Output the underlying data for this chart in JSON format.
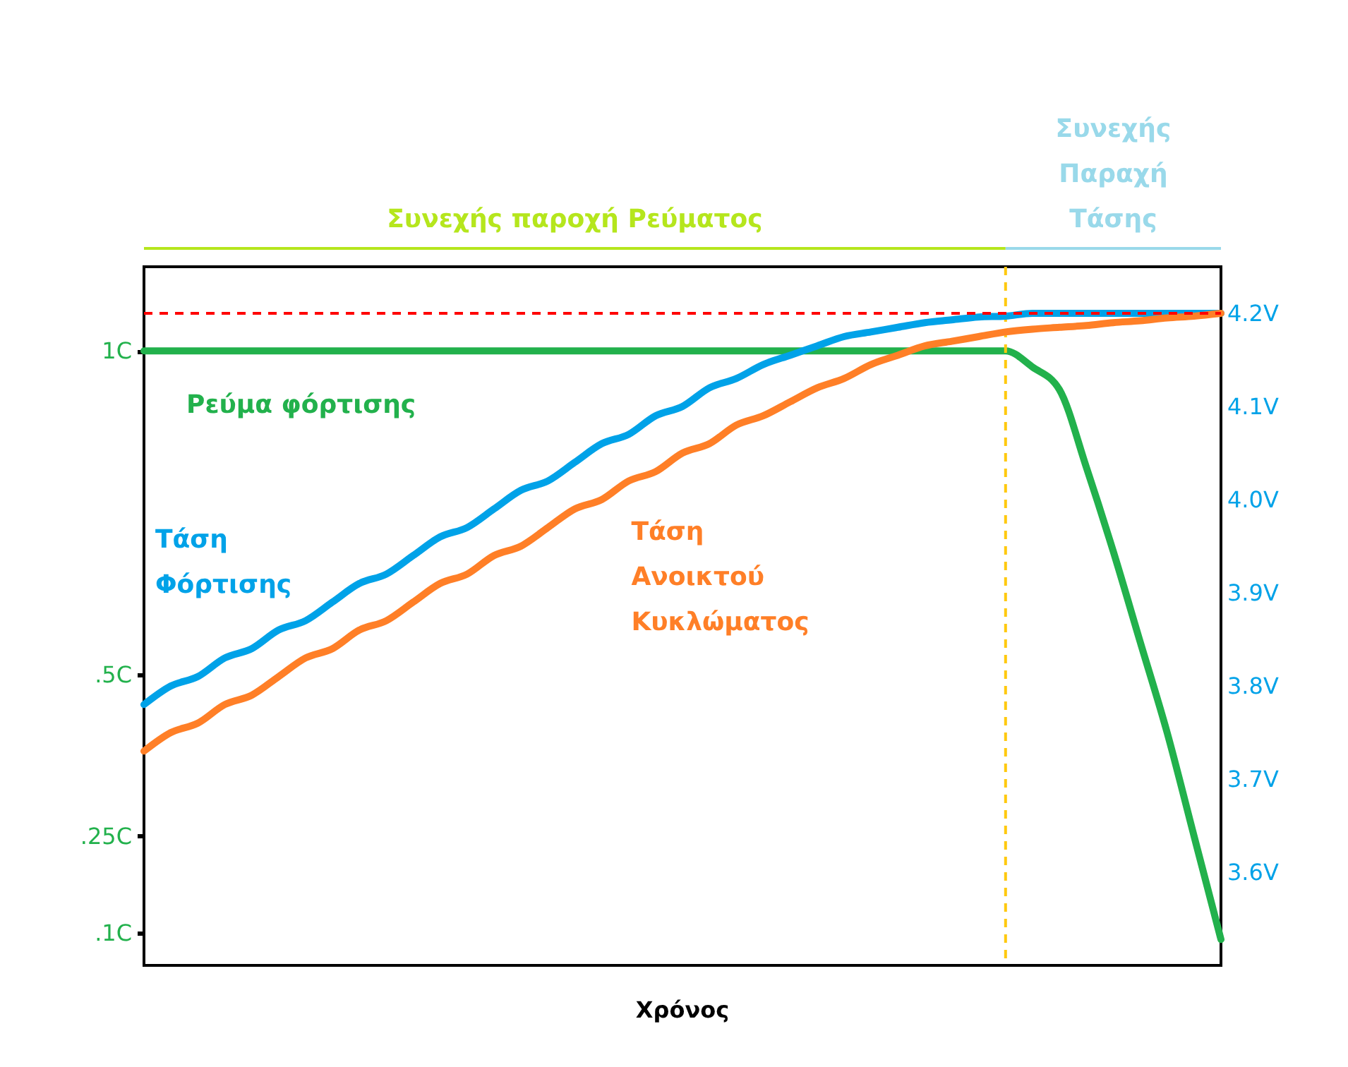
{
  "chart_data": {
    "type": "line",
    "xlabel": "Χρόνος",
    "tick_labels": "y",
    "grid": false,
    "categories": [
      null,
      null,
      null,
      null,
      null,
      null,
      null,
      null,
      null,
      null,
      null,
      null,
      null,
      null,
      null,
      null,
      null,
      null,
      null,
      null,
      null,
      null,
      null,
      null,
      null,
      null,
      null,
      null,
      null,
      null,
      null,
      null,
      null,
      null,
      null,
      null,
      null,
      null,
      null,
      null,
      null
    ],
    "ylim": [
      0.05,
      1.13
    ],
    "yticks": [
      {
        "value": 1,
        "label": "1C"
      },
      {
        "value": 0.5,
        "label": ".5C"
      },
      {
        "value": 0.25,
        "label": ".25C"
      },
      {
        "value": 0.1,
        "label": ".1C"
      }
    ],
    "y2lim": [
      3.5,
      4.25
    ],
    "y2ticks": [
      {
        "value": 4.2,
        "label": "4.2V"
      },
      {
        "value": 4.1,
        "label": "4.1V"
      },
      {
        "value": 4.0,
        "label": "4.0V"
      },
      {
        "value": 3.9,
        "label": "3.9V"
      },
      {
        "value": 3.8,
        "label": "3.8V"
      },
      {
        "value": 3.7,
        "label": "3.7V"
      },
      {
        "value": 3.6,
        "label": "3.6V"
      }
    ],
    "series": [
      {
        "name": "Ρεύμα φόρτισης",
        "color": "#22b14c",
        "values": [
          1,
          1,
          1,
          1,
          1,
          1,
          1,
          1,
          1,
          1,
          1,
          1,
          1,
          1,
          1,
          1,
          1,
          1,
          1,
          1,
          1,
          1,
          1,
          1,
          1,
          1,
          1,
          1,
          1,
          1,
          1,
          1,
          1,
          0.975,
          0.94,
          0.82,
          0.69,
          0.55,
          0.41,
          0.25,
          0.09
        ]
      },
      {
        "name": "Τάση\nΦόρτισης",
        "color": "#00a2e8",
        "axis": "y2",
        "values": [
          3.78,
          3.8,
          3.81,
          3.83,
          3.84,
          3.86,
          3.87,
          3.89,
          3.91,
          3.92,
          3.94,
          3.96,
          3.97,
          3.99,
          4.01,
          4.02,
          4.04,
          4.06,
          4.07,
          4.09,
          4.1,
          4.12,
          4.13,
          4.145,
          4.155,
          4.165,
          4.175,
          4.18,
          4.185,
          4.19,
          4.193,
          4.196,
          4.197,
          4.2,
          4.2,
          4.2,
          4.2,
          4.2,
          4.2,
          4.2,
          4.2
        ]
      },
      {
        "name": "Τάση\nΑνοικτού\nΚυκλώματος",
        "color": "#ff7f27",
        "axis": "y2",
        "values": [
          3.73,
          3.75,
          3.76,
          3.78,
          3.79,
          3.81,
          3.83,
          3.84,
          3.86,
          3.87,
          3.89,
          3.91,
          3.92,
          3.94,
          3.95,
          3.97,
          3.99,
          4.0,
          4.02,
          4.03,
          4.05,
          4.06,
          4.08,
          4.09,
          4.105,
          4.12,
          4.13,
          4.145,
          4.155,
          4.165,
          4.17,
          4.175,
          4.18,
          4.183,
          4.185,
          4.187,
          4.19,
          4.192,
          4.195,
          4.197,
          4.2
        ]
      }
    ],
    "ref_lines": [
      {
        "axis": "y2",
        "value": 4.2,
        "color": "#ff0000",
        "line_style": "dashed"
      }
    ],
    "annotations": [
      "Συνεχής παροχή Ρεύματος",
      "Συνεχής\nΠαραχή\nΤάσης"
    ]
  }
}
